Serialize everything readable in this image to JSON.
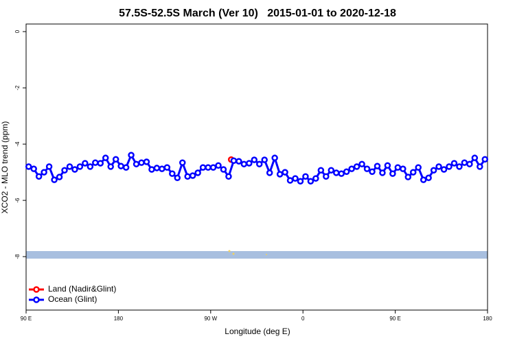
{
  "chart_data": {
    "type": "line",
    "title": "57.5S-52.5S March (Ver 10)   2015-01-01 to 2020-12-18",
    "x_label": "Longitude (deg E)",
    "y_label": "XCO2 - MLO trend (ppm)",
    "xlim": [
      90,
      540
    ],
    "xticks": [
      {
        "value": 90,
        "label": "90 E"
      },
      {
        "value": 180,
        "label": "180"
      },
      {
        "value": 270,
        "label": "90 W"
      },
      {
        "value": 360,
        "label": "0"
      },
      {
        "value": 450,
        "label": "90 E"
      },
      {
        "value": 540,
        "label": "180"
      }
    ],
    "ylim": [
      -9.9,
      0.27
    ],
    "yticks": [
      0,
      -2,
      -4,
      -6,
      -8
    ],
    "legend": "bottom-left",
    "series": [
      {
        "name": "Land (Nadir&Glint)",
        "color": "#ff0000",
        "x": [
          290
        ],
        "values": [
          -4.55
        ]
      },
      {
        "name": "Ocean (Glint)",
        "color": "#0000ff",
        "x": [
          92.5,
          97.5,
          102.5,
          107.5,
          112.5,
          117.5,
          122.5,
          127.5,
          132.5,
          137.5,
          142.5,
          147.5,
          152.5,
          157.5,
          162.5,
          167.5,
          172.5,
          177.5,
          182.5,
          187.5,
          192.5,
          197.5,
          202.5,
          207.5,
          212.5,
          217.5,
          222.5,
          227.5,
          232.5,
          237.5,
          242.5,
          247.5,
          252.5,
          257.5,
          262.5,
          267.5,
          272.5,
          277.5,
          282.5,
          287.5,
          292.5,
          297.5,
          302.5,
          307.5,
          312.5,
          317.5,
          322.5,
          327.5,
          332.5,
          337.5,
          342.5,
          347.5,
          352.5,
          357.5,
          362.5,
          367.5,
          372.5,
          377.5,
          382.5,
          387.5,
          392.5,
          397.5,
          402.5,
          407.5,
          412.5,
          417.5,
          422.5,
          427.5,
          432.5,
          437.5,
          442.5,
          447.5,
          452.5,
          457.5,
          462.5,
          467.5,
          472.5,
          477.5,
          482.5,
          487.5,
          492.5,
          497.5,
          502.5,
          507.5,
          512.5,
          517.5,
          522.5,
          527.5,
          532.5,
          537.5
        ],
        "values": [
          -4.8,
          -4.88,
          -5.15,
          -5.0,
          -4.8,
          -5.27,
          -5.17,
          -4.93,
          -4.8,
          -4.9,
          -4.8,
          -4.68,
          -4.8,
          -4.66,
          -4.68,
          -4.49,
          -4.8,
          -4.54,
          -4.78,
          -4.83,
          -4.39,
          -4.71,
          -4.66,
          -4.63,
          -4.9,
          -4.85,
          -4.88,
          -4.83,
          -5.05,
          -5.2,
          -4.66,
          -5.15,
          -5.12,
          -5.02,
          -4.83,
          -4.83,
          -4.83,
          -4.76,
          -4.9,
          -5.15,
          -4.59,
          -4.61,
          -4.71,
          -4.68,
          -4.56,
          -4.71,
          -4.56,
          -5.02,
          -4.49,
          -5.07,
          -5.0,
          -5.29,
          -5.22,
          -5.32,
          -5.15,
          -5.32,
          -5.22,
          -4.93,
          -5.15,
          -4.93,
          -5.02,
          -5.05,
          -4.98,
          -4.88,
          -4.8,
          -4.71,
          -4.88,
          -4.98,
          -4.78,
          -5.02,
          -4.76,
          -5.05,
          -4.83,
          -4.88,
          -5.17,
          -5.0,
          -4.83,
          -5.27,
          -5.2,
          -4.93,
          -4.8,
          -4.9,
          -4.8,
          -4.68,
          -4.8,
          -4.66,
          -4.71,
          -4.49,
          -4.8,
          -4.54
        ]
      }
    ]
  }
}
